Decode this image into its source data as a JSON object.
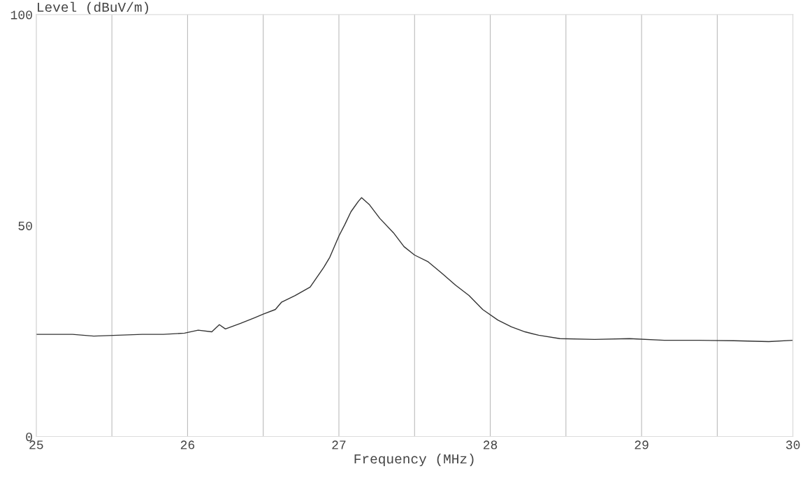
{
  "chart_data": {
    "type": "line",
    "xlabel": "Frequency (MHz)",
    "ylabel": "Level (dBuV/m)",
    "x": [
      25,
      25.24,
      25.38,
      25.7,
      25.84,
      25.98,
      26.07,
      26.16,
      26.21,
      26.25,
      26.35,
      26.44,
      26.5,
      26.58,
      26.62,
      26.71,
      26.81,
      26.9,
      26.94,
      27.0,
      27.04,
      27.08,
      27.13,
      27.15,
      27.2,
      27.27,
      27.36,
      27.43,
      27.5,
      27.59,
      27.68,
      27.77,
      27.86,
      27.95,
      28.05,
      28.14,
      28.23,
      28.32,
      28.46,
      28.69,
      28.92,
      29.15,
      29.38,
      29.61,
      29.84,
      30
    ],
    "series": [
      {
        "color": "#333333",
        "values": [
          24.2,
          24.2,
          23.8,
          24.2,
          24.2,
          24.5,
          25.2,
          24.8,
          26.5,
          25.5,
          26.8,
          28.1,
          29.0,
          30.1,
          31.8,
          33.4,
          35.4,
          40.1,
          42.5,
          47.5,
          50.3,
          53.3,
          55.8,
          56.6,
          55.0,
          51.7,
          48.3,
          45.0,
          43.0,
          41.4,
          38.7,
          35.9,
          33.4,
          30.1,
          27.6,
          26.0,
          24.8,
          24.0,
          23.2,
          23.0,
          23.2,
          22.8,
          22.8,
          22.7,
          22.5,
          22.8
        ]
      }
    ],
    "xlim": [
      25,
      30
    ],
    "ylim": [
      0,
      100
    ],
    "xticks": [
      25,
      {
        "value": 25.5,
        "label": null
      },
      26,
      {
        "value": 26.5,
        "label": null
      },
      27,
      {
        "value": 27.5,
        "label": null
      },
      28,
      {
        "value": 28.5,
        "label": null
      },
      29,
      {
        "value": 29.5,
        "label": null
      },
      30
    ],
    "yticks": [
      0,
      50,
      100
    ],
    "grid": "x",
    "marker": "none",
    "line_style": "solid"
  }
}
